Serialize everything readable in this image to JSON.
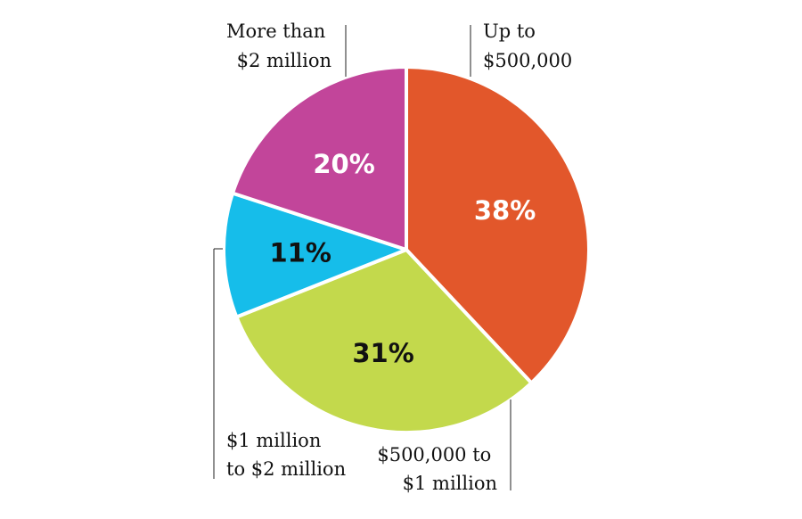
{
  "chart_data": {
    "type": "pie",
    "slices": [
      {
        "label": "Up to $500,000",
        "label_lines": [
          "Up to",
          "$500,000"
        ],
        "value": 38,
        "value_label": "38%",
        "color": "#E2572B",
        "value_text_color": "#FFFFFF"
      },
      {
        "label": "$500,000 to $1 million",
        "label_lines": [
          "$500,000 to",
          "$1 million"
        ],
        "value": 31,
        "value_label": "31%",
        "color": "#C3D94C",
        "value_text_color": "#111111"
      },
      {
        "label": "$1 million to $2 million",
        "label_lines": [
          "$1 million",
          "to $2 million"
        ],
        "value": 11,
        "value_label": "11%",
        "color": "#16BDEA",
        "value_text_color": "#111111"
      },
      {
        "label": "More than $2 million",
        "label_lines": [
          "More than",
          "$2 million"
        ],
        "value": 20,
        "value_label": "20%",
        "color": "#C2459A",
        "value_text_color": "#FFFFFF"
      }
    ],
    "start": "12 o'clock",
    "direction": "clockwise",
    "legend": "none"
  }
}
